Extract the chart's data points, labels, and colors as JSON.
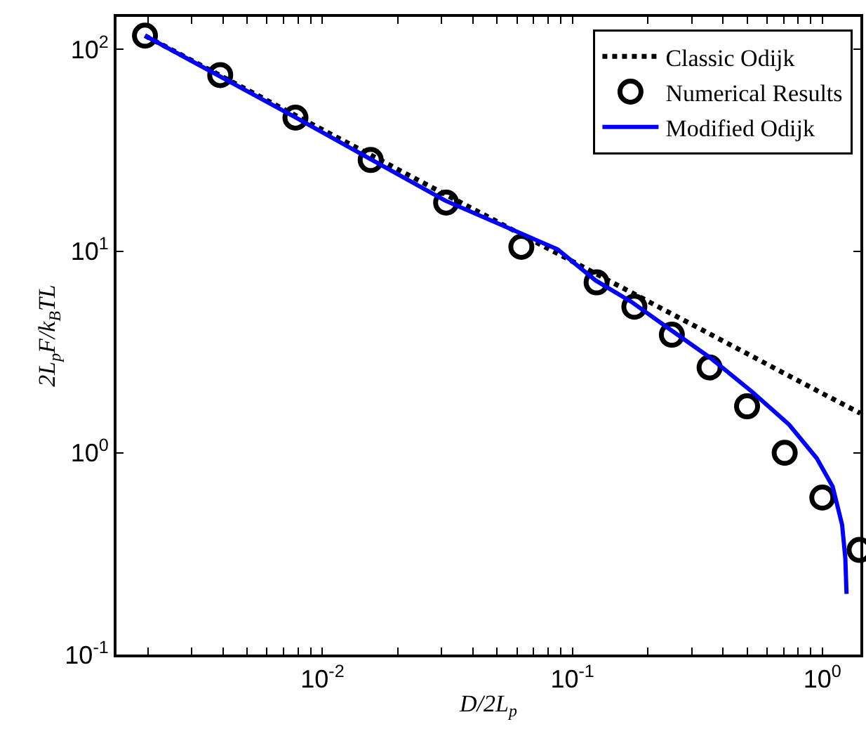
{
  "chart_data": {
    "type": "line",
    "xlabel": "D/2L$_{p}$",
    "ylabel": "2L$_{p}$F/k$_{B}$TL",
    "log": "xy",
    "legend": "top right",
    "xlim": [
      0.0015,
      1.42
    ],
    "ylim": [
      0.1,
      145
    ],
    "xticks": [
      {
        "value": 0.002,
        "label": null
      },
      {
        "value": 0.003,
        "label": null
      },
      {
        "value": 0.004,
        "label": null
      },
      {
        "value": 0.005,
        "label": null
      },
      {
        "value": 0.006,
        "label": null
      },
      {
        "value": 0.007,
        "label": null
      },
      {
        "value": 0.008,
        "label": null
      },
      {
        "value": 0.009,
        "label": null
      },
      {
        "value": 0.01,
        "label": "10$^{-2}$"
      },
      {
        "value": 0.02,
        "label": null
      },
      {
        "value": 0.03,
        "label": null
      },
      {
        "value": 0.04,
        "label": null
      },
      {
        "value": 0.05,
        "label": null
      },
      {
        "value": 0.06,
        "label": null
      },
      {
        "value": 0.07,
        "label": null
      },
      {
        "value": 0.08,
        "label": null
      },
      {
        "value": 0.09,
        "label": null
      },
      {
        "value": 0.1,
        "label": "10$^{-1}$"
      },
      {
        "value": 0.2,
        "label": null
      },
      {
        "value": 0.3,
        "label": null
      },
      {
        "value": 0.4,
        "label": null
      },
      {
        "value": 0.5,
        "label": null
      },
      {
        "value": 0.6,
        "label": null
      },
      {
        "value": 0.7,
        "label": null
      },
      {
        "value": 0.8,
        "label": null
      },
      {
        "value": 0.9,
        "label": null
      },
      {
        "value": 1,
        "label": "10$^{0}$"
      }
    ],
    "yticks": [
      {
        "value": 0.1,
        "label": "10$^{-1}$"
      },
      {
        "value": 1,
        "label": "10$^{0}$"
      },
      {
        "value": 10,
        "label": "10$^{1}$"
      },
      {
        "value": 100,
        "label": "10$^{2}$"
      }
    ],
    "series": [
      {
        "name": "Classic Odijk",
        "color": "#000000",
        "line_style": "dotted",
        "marker": "none",
        "x": [
          0.00195,
          0.01,
          0.1,
          1,
          1.42
        ],
        "values": [
          117,
          40,
          8.9,
          1.97,
          1.57
        ]
      },
      {
        "name": "Numerical Results",
        "type": "scatter",
        "color": "#000000",
        "marker": "circle",
        "x": [
          0.00195,
          0.0039,
          0.0078,
          0.0156,
          0.03125,
          0.0625,
          0.125,
          0.177,
          0.25,
          0.354,
          0.5,
          0.707,
          1.0,
          1.41
        ],
        "values": [
          117,
          74.6,
          45.9,
          28.3,
          17.4,
          10.5,
          7.0,
          5.3,
          3.85,
          2.65,
          1.7,
          1.0,
          0.6,
          0.33
        ]
      },
      {
        "name": "Modified Odijk",
        "color": "#0000ff",
        "line_style": "solid",
        "marker": "none",
        "x": [
          0.00195,
          0.0078,
          0.031,
          0.0873,
          0.124,
          0.172,
          0.248,
          0.356,
          0.523,
          0.736,
          0.95,
          1.1,
          1.2,
          1.236,
          1.25
        ],
        "values": [
          117,
          46,
          17.8,
          10.2,
          7.15,
          5.61,
          4.06,
          2.96,
          2.01,
          1.38,
          0.94,
          0.68,
          0.44,
          0.3,
          0.2
        ]
      }
    ]
  }
}
